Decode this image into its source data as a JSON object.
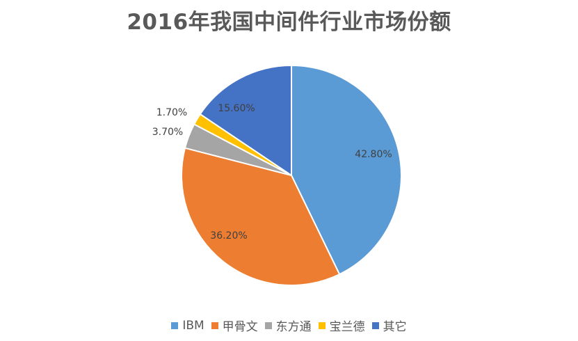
{
  "chart_data": {
    "type": "pie",
    "title": "2016年我国中间件行业市场份额",
    "categories": [
      "IBM",
      "甲骨文",
      "东方通",
      "宝兰德",
      "其它"
    ],
    "values": [
      42.8,
      36.2,
      3.7,
      1.7,
      15.6
    ],
    "labels": [
      "42.80%",
      "36.20%",
      "3.70%",
      "1.70%",
      "15.60%"
    ],
    "colors": [
      "#5B9BD5",
      "#ED7D31",
      "#A5A5A5",
      "#FFC000",
      "#4472C4"
    ],
    "legend_position": "bottom",
    "start_angle": "12 o'clock, clockwise"
  }
}
